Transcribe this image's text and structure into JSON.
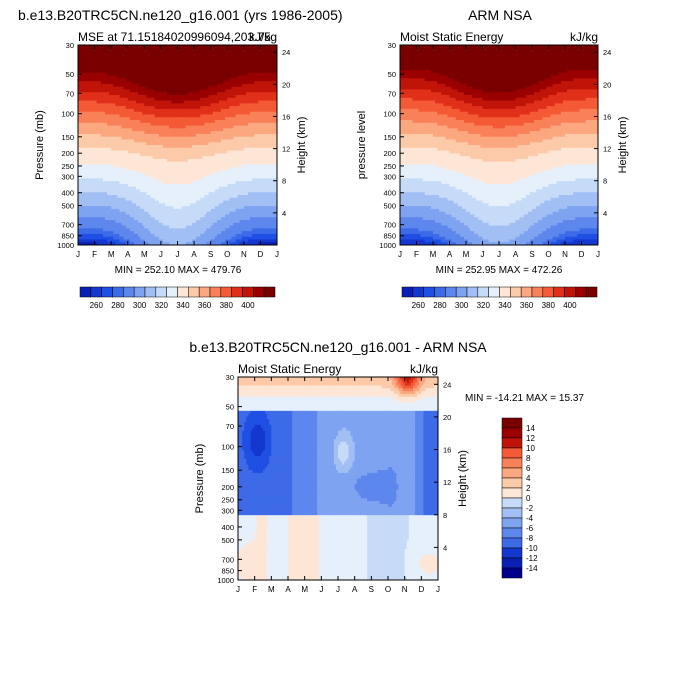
{
  "colors": {
    "shading": [
      "#00008b",
      "#0a1fb3",
      "#1437cf",
      "#1f4fe3",
      "#3d6be8",
      "#5d87ec",
      "#7ea3f0",
      "#a2bff4",
      "#c6dbf8",
      "#e6f0fb",
      "#fde6d6",
      "#fccaa8",
      "#fba77f",
      "#f98159",
      "#f35a35",
      "#e0301a",
      "#c01408",
      "#9a0000",
      "#7a0000"
    ]
  },
  "chart_data": [
    {
      "id": "model",
      "type": "contour",
      "title_left": "b.e13.B20TRC5CN.ne120_g16.001 (yrs 1986-2005)",
      "subtitle_left": "MSE at 71.15184020996094,203.75",
      "subtitle_right": "kJ/kg",
      "ylabel": "Pressure (mb)",
      "ylabel_right": "Height (km)",
      "x": [
        "J",
        "F",
        "M",
        "A",
        "M",
        "J",
        "J",
        "A",
        "S",
        "O",
        "N",
        "D",
        "J"
      ],
      "pressure_ticks": [
        30,
        50,
        70,
        100,
        150,
        200,
        250,
        300,
        400,
        500,
        700,
        850,
        1000
      ],
      "height_ticks": [
        4,
        8,
        12,
        16,
        20,
        24
      ],
      "stats": "MIN = 252.10 MAX = 479.76",
      "min": 252.1,
      "max": 479.76,
      "levels": [
        250,
        255,
        260,
        265,
        270,
        280,
        290,
        300,
        310,
        320,
        330,
        340,
        350,
        360,
        370,
        380,
        390,
        400,
        410
      ],
      "profile": {
        "surface_winter": 252,
        "surface_summer": 290,
        "tropo_min_winter": 318,
        "tropo_min_summer": 330,
        "trop_p_winter": 260,
        "trop_p_summer": 230,
        "upper_winter": 430,
        "upper_summer": 470
      }
    },
    {
      "id": "obs",
      "type": "contour",
      "title_right": "ARM NSA",
      "subtitle_left": "Moist Static Energy",
      "subtitle_right": "kJ/kg",
      "ylabel": "pressure level",
      "ylabel_right": "Height (km)",
      "x": [
        "J",
        "F",
        "M",
        "A",
        "M",
        "J",
        "J",
        "A",
        "S",
        "O",
        "N",
        "D",
        "J"
      ],
      "pressure_ticks": [
        30,
        50,
        70,
        100,
        150,
        200,
        250,
        300,
        400,
        500,
        700,
        850,
        1000
      ],
      "height_ticks": [
        4,
        8,
        12,
        16,
        20,
        24
      ],
      "stats": "MIN = 252.95 MAX = 472.26",
      "min": 252.95,
      "max": 472.26,
      "levels": [
        250,
        255,
        260,
        265,
        270,
        280,
        290,
        300,
        310,
        320,
        330,
        340,
        350,
        360,
        370,
        380,
        390,
        400,
        410
      ],
      "profile": {
        "surface_winter": 253,
        "surface_summer": 288,
        "tropo_min_winter": 318,
        "tropo_min_summer": 330,
        "trop_p_winter": 260,
        "trop_p_summer": 235,
        "upper_winter": 425,
        "upper_summer": 465
      }
    },
    {
      "id": "diff",
      "type": "contour",
      "title": "b.e13.B20TRC5CN.ne120_g16.001 - ARM NSA",
      "subtitle_left": "Moist Static Energy",
      "subtitle_right": "kJ/kg",
      "ylabel": "Pressure (mb)",
      "ylabel_right": "Height (km)",
      "x": [
        "J",
        "F",
        "M",
        "A",
        "M",
        "J",
        "J",
        "A",
        "S",
        "O",
        "N",
        "D",
        "J"
      ],
      "pressure_ticks": [
        30,
        50,
        70,
        100,
        150,
        200,
        250,
        300,
        400,
        500,
        700,
        850,
        1000
      ],
      "height_ticks": [
        4,
        8,
        12,
        16,
        20,
        24
      ],
      "stats": "MIN = -14.21 MAX =  15.37",
      "min": -14.21,
      "max": 15.37,
      "levels": [
        -15,
        -14,
        -12,
        -10,
        -8,
        -6,
        -4,
        -2,
        0,
        2,
        4,
        6,
        8,
        10,
        12,
        14,
        16
      ]
    }
  ],
  "colorbars": {
    "top": {
      "labels": [
        "260",
        "280",
        "300",
        "320",
        "340",
        "360",
        "380",
        "400"
      ]
    },
    "diff": {
      "labels": [
        "14",
        "12",
        "10",
        "8",
        "6",
        "4",
        "2",
        "0",
        "-2",
        "-4",
        "-6",
        "-8",
        "-10",
        "-12",
        "-14"
      ]
    }
  }
}
